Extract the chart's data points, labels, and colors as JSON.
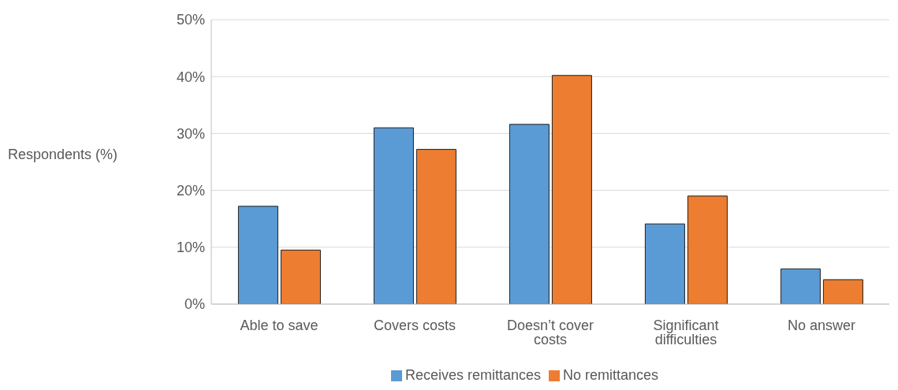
{
  "chart_data": {
    "type": "bar",
    "ylabel": "Respondents (%)",
    "categories": [
      "Able to save",
      "Covers costs",
      "Doesn’t cover costs",
      "Significant difficulties",
      "No answer"
    ],
    "series": [
      {
        "name": "Receives remittances",
        "color": "#5b9bd5",
        "values": [
          17.2,
          31.0,
          31.6,
          14.1,
          6.2
        ]
      },
      {
        "name": "No remittances",
        "color": "#ed7d31",
        "values": [
          9.5,
          27.2,
          40.2,
          19.0,
          4.3
        ]
      }
    ],
    "ylim": [
      0,
      50
    ],
    "yticks": [
      {
        "value": 0,
        "label": "0%"
      },
      {
        "value": 10,
        "label": "10%"
      },
      {
        "value": 20,
        "label": "20%"
      },
      {
        "value": 30,
        "label": "30%"
      },
      {
        "value": 40,
        "label": "40%"
      },
      {
        "value": 50,
        "label": "50%"
      }
    ],
    "grid": "y",
    "legend": "bottom"
  }
}
